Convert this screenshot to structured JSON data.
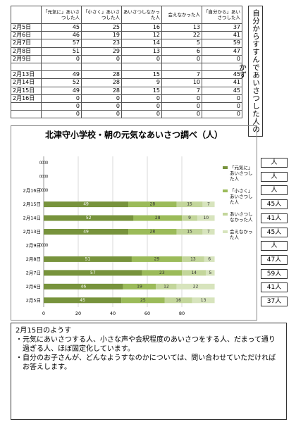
{
  "table": {
    "header": [
      "「元気に」あいさつした人",
      "「小さく」あいさつした人",
      "あいさつしなかった人",
      "会えなかった人",
      "「自分から」あいさつした人"
    ],
    "rows": [
      {
        "date": "2月5日",
        "values": [
          45,
          25,
          16,
          13,
          37
        ]
      },
      {
        "date": "2月6日",
        "values": [
          46,
          19,
          12,
          22,
          41
        ]
      },
      {
        "date": "2月7日",
        "values": [
          57,
          23,
          14,
          5,
          59
        ]
      },
      {
        "date": "2月8日",
        "values": [
          51,
          29,
          13,
          6,
          47
        ]
      },
      {
        "date": "2月9日",
        "values": [
          0,
          0,
          0,
          0,
          0
        ]
      },
      {
        "date": null,
        "values": [
          null,
          null,
          null,
          null,
          null
        ]
      },
      {
        "date": "2月13日",
        "values": [
          49,
          28,
          15,
          7,
          45
        ]
      },
      {
        "date": "2月14日",
        "values": [
          52,
          28,
          9,
          10,
          41
        ]
      },
      {
        "date": "2月15日",
        "values": [
          49,
          28,
          15,
          7,
          45
        ]
      },
      {
        "date": "2月16日",
        "values": [
          0,
          0,
          0,
          0,
          0
        ]
      },
      {
        "date": null,
        "values": [
          0,
          0,
          0,
          0,
          0
        ]
      },
      {
        "date": null,
        "values": [
          0,
          0,
          0,
          0,
          0
        ]
      }
    ]
  },
  "side_title": "自分からすすんであいさつした人のかず",
  "chart_data": {
    "type": "bar",
    "orientation": "horizontal",
    "stacked": true,
    "title": "北津守小学校・朝の元気なあいさつ調べ（人）",
    "categories": [
      "2月5日",
      "2月6日",
      "2月7日",
      "2月8日",
      "2月9日",
      "2月13日",
      "2月14日",
      "2月15日",
      "2月16日",
      null,
      null
    ],
    "series": [
      {
        "name": "「元気に」あいさつした人",
        "color": "#77933c",
        "values": [
          45,
          46,
          57,
          51,
          0,
          49,
          52,
          49,
          0,
          0,
          0
        ]
      },
      {
        "name": "「小さく」あいさつした人",
        "color": "#9bbb59",
        "values": [
          25,
          19,
          23,
          29,
          0,
          28,
          28,
          28,
          0,
          0,
          0
        ]
      },
      {
        "name": "あいさつしなかった人",
        "color": "#c3d69b",
        "values": [
          16,
          12,
          14,
          13,
          0,
          15,
          9,
          15,
          0,
          0,
          0
        ]
      },
      {
        "name": "会えなかった人",
        "color": "#d7e4bd",
        "values": [
          13,
          22,
          5,
          6,
          0,
          7,
          10,
          7,
          0,
          0,
          0
        ]
      }
    ],
    "xlim": [
      0,
      100
    ],
    "xticks": [
      0,
      20,
      40,
      60,
      80
    ],
    "grid": true,
    "legend": "right"
  },
  "side_labels": [
    "人",
    "人",
    "人",
    "45人",
    "41人",
    "45人",
    "人",
    "47人",
    "59人",
    "41人",
    "37人"
  ],
  "notes": {
    "title": "2月15日のようす",
    "items": [
      "・元気にあいさつする人、小さな声や会釈程度のあいさつをする人、だまって通り過ぎる人、ほぼ固定化しています。",
      "・自分のお子さんが、どんなようすなのかについては、問い合わせていただければお答えします。"
    ]
  }
}
